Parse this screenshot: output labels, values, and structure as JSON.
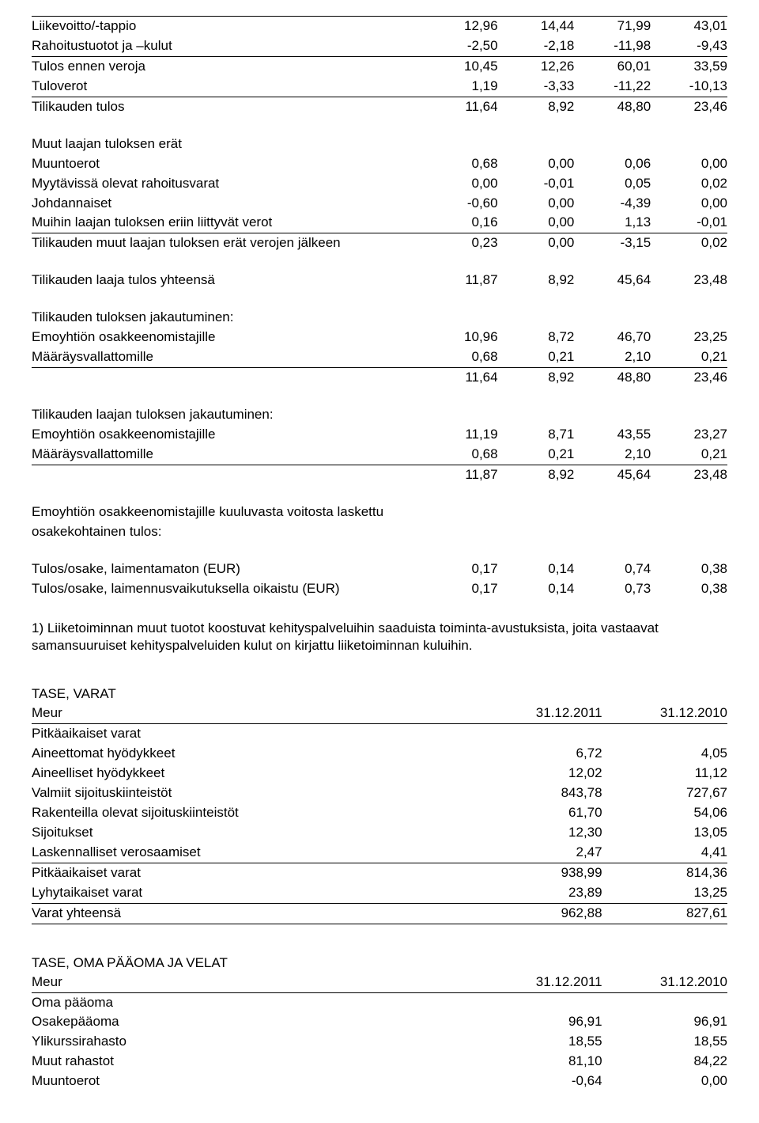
{
  "income": {
    "rows": [
      {
        "label": "Liikevoitto/-tappio",
        "v": [
          "12,96",
          "14,44",
          "71,99",
          "43,01"
        ],
        "ruleTop": true
      },
      {
        "label": "Rahoitustuotot ja –kulut",
        "v": [
          "-2,50",
          "-2,18",
          "-11,98",
          "-9,43"
        ],
        "ruleBottom": true
      },
      {
        "label": "Tulos ennen veroja",
        "v": [
          "10,45",
          "12,26",
          "60,01",
          "33,59"
        ]
      },
      {
        "label": "Tuloverot",
        "v": [
          "1,19",
          "-3,33",
          "-11,22",
          "-10,13"
        ],
        "ruleBottom": true
      },
      {
        "label": "Tilikauden tulos",
        "v": [
          "11,64",
          "8,92",
          "48,80",
          "23,46"
        ]
      }
    ],
    "group2": {
      "heading": "Muut laajan tuloksen erät",
      "rows": [
        {
          "label": "Muuntoerot",
          "v": [
            "0,68",
            "0,00",
            "0,06",
            "0,00"
          ]
        },
        {
          "label": "Myytävissä olevat rahoitusvarat",
          "v": [
            "0,00",
            "-0,01",
            "0,05",
            "0,02"
          ]
        },
        {
          "label": "Johdannaiset",
          "v": [
            "-0,60",
            "0,00",
            "-4,39",
            "0,00"
          ]
        },
        {
          "label": "Muihin laajan tuloksen eriin liittyvät verot",
          "v": [
            "0,16",
            "0,00",
            "1,13",
            "-0,01"
          ],
          "ruleBottom": true
        },
        {
          "label": "Tilikauden muut laajan tuloksen erät verojen jälkeen",
          "v": [
            "0,23",
            "0,00",
            "-3,15",
            "0,02"
          ]
        }
      ]
    },
    "totalRow": {
      "label": "Tilikauden laaja tulos yhteensä",
      "v": [
        "11,87",
        "8,92",
        "45,64",
        "23,48"
      ]
    },
    "alloc1": {
      "heading": "Tilikauden tuloksen jakautuminen:",
      "rows": [
        {
          "label": "Emoyhtiön osakkeenomistajille",
          "v": [
            "10,96",
            "8,72",
            "46,70",
            "23,25"
          ]
        },
        {
          "label": "Määräysvallattomille",
          "v": [
            "0,68",
            "0,21",
            "2,10",
            "0,21"
          ],
          "ruleBottom": true
        }
      ],
      "sum": [
        "11,64",
        "8,92",
        "48,80",
        "23,46"
      ]
    },
    "alloc2": {
      "heading": "Tilikauden laajan tuloksen jakautuminen:",
      "rows": [
        {
          "label": "Emoyhtiön osakkeenomistajille",
          "v": [
            "11,19",
            "8,71",
            "43,55",
            "23,27"
          ]
        },
        {
          "label": "Määräysvallattomille",
          "v": [
            "0,68",
            "0,21",
            "2,10",
            "0,21"
          ],
          "ruleBottom": true
        }
      ],
      "sum": [
        "11,87",
        "8,92",
        "45,64",
        "23,48"
      ]
    },
    "epsHeading": "Emoyhtiön osakkeenomistajille kuuluvasta voitosta laskettu osakekohtainen tulos:",
    "epsRows": [
      {
        "label": "Tulos/osake, laimentamaton (EUR)",
        "v": [
          "0,17",
          "0,14",
          "0,74",
          "0,38"
        ]
      },
      {
        "label": "Tulos/osake, laimennusvaikutuksella oikaistu (EUR)",
        "v": [
          "0,17",
          "0,14",
          "0,73",
          "0,38"
        ]
      }
    ]
  },
  "footnote": "1) Liiketoiminnan muut tuotot koostuvat kehityspalveluihin saaduista toiminta-avustuksista, joita vastaavat samansuuruiset kehityspalveluiden kulut on kirjattu liiketoiminnan kuluihin.",
  "balanceAssets": {
    "title": "TASE, VARAT",
    "header": {
      "label": "Meur",
      "c1": "31.12.2011",
      "c2": "31.12.2010"
    },
    "sub": "Pitkäaikaiset varat",
    "rows": [
      {
        "label": "Aineettomat hyödykkeet",
        "v": [
          "6,72",
          "4,05"
        ]
      },
      {
        "label": "Aineelliset hyödykkeet",
        "v": [
          "12,02",
          "11,12"
        ]
      },
      {
        "label": "Valmiit sijoituskiinteistöt",
        "v": [
          "843,78",
          "727,67"
        ]
      },
      {
        "label": "Rakenteilla olevat sijoituskiinteistöt",
        "v": [
          "61,70",
          "54,06"
        ]
      },
      {
        "label": "Sijoitukset",
        "v": [
          "12,30",
          "13,05"
        ]
      },
      {
        "label": "Laskennalliset verosaamiset",
        "v": [
          "2,47",
          "4,41"
        ],
        "ruleBottom": true
      },
      {
        "label": "Pitkäaikaiset varat",
        "v": [
          "938,99",
          "814,36"
        ]
      },
      {
        "label": "Lyhytaikaiset varat",
        "v": [
          "23,89",
          "13,25"
        ],
        "ruleBottom": true
      },
      {
        "label": "Varat yhteensä",
        "v": [
          "962,88",
          "827,61"
        ],
        "ruleBottom": true
      }
    ]
  },
  "balanceEquity": {
    "title": "TASE, OMA PÄÄOMA JA VELAT",
    "header": {
      "label": "Meur",
      "c1": "31.12.2011",
      "c2": "31.12.2010"
    },
    "sub": "Oma pääoma",
    "rows": [
      {
        "label": "Osakepääoma",
        "v": [
          "96,91",
          "96,91"
        ]
      },
      {
        "label": "Ylikurssirahasto",
        "v": [
          "18,55",
          "18,55"
        ]
      },
      {
        "label": "Muut rahastot",
        "v": [
          "81,10",
          "84,22"
        ]
      },
      {
        "label": "Muuntoerot",
        "v": [
          "-0,64",
          "0,00"
        ]
      }
    ]
  }
}
